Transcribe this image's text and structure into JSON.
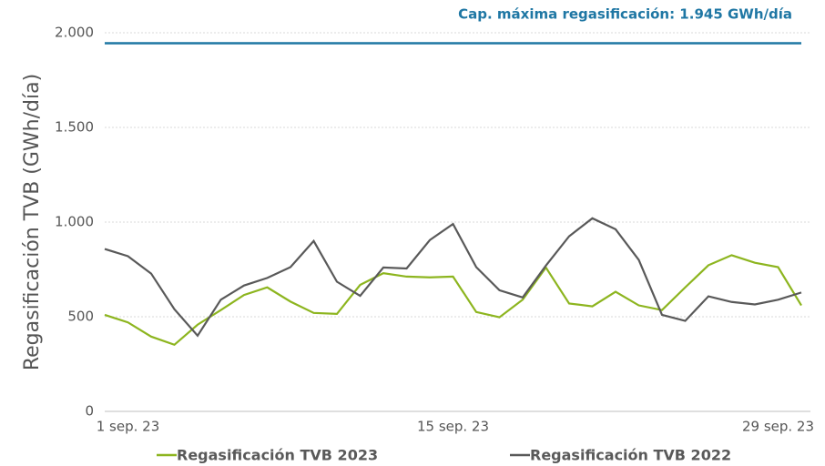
{
  "chart_data": {
    "type": "line",
    "y_label": "Regasificación TVB (GWh/día)",
    "categories": [
      null,
      "1 sep. 23",
      null,
      null,
      null,
      null,
      null,
      null,
      null,
      null,
      null,
      null,
      null,
      null,
      null,
      "15 sep. 23",
      null,
      null,
      null,
      null,
      null,
      null,
      null,
      null,
      null,
      null,
      null,
      null,
      null,
      "29 sep. 23",
      null
    ],
    "series": [
      {
        "name": "Regasificación TVB 2023",
        "color": "#8db51f",
        "values": [
          510,
          470,
          395,
          352,
          458,
          535,
          615,
          655,
          580,
          520,
          515,
          668,
          730,
          712,
          708,
          712,
          525,
          497,
          590,
          760,
          570,
          555,
          632,
          560,
          535,
          655,
          772,
          825,
          785,
          762,
          560
        ]
      },
      {
        "name": "Regasificación TVB 2022",
        "color": "#595959",
        "values": [
          858,
          820,
          728,
          540,
          400,
          590,
          665,
          705,
          762,
          900,
          685,
          610,
          760,
          755,
          905,
          990,
          762,
          640,
          602,
          770,
          925,
          1020,
          962,
          800,
          510,
          478,
          608,
          578,
          565,
          590,
          628
        ]
      }
    ],
    "reference_line": {
      "value": 1945,
      "label": "Cap. máxima regasificación: 1.945 GWh/día",
      "color": "#1f77a4"
    },
    "ylim": [
      0,
      2000
    ],
    "yticks": [
      0,
      500,
      {
        "value": 1000,
        "label": "1.000"
      },
      {
        "value": 1500,
        "label": "1.500"
      },
      {
        "value": 2000,
        "label": "2.000"
      }
    ],
    "grid": true,
    "legend": "bottom"
  }
}
